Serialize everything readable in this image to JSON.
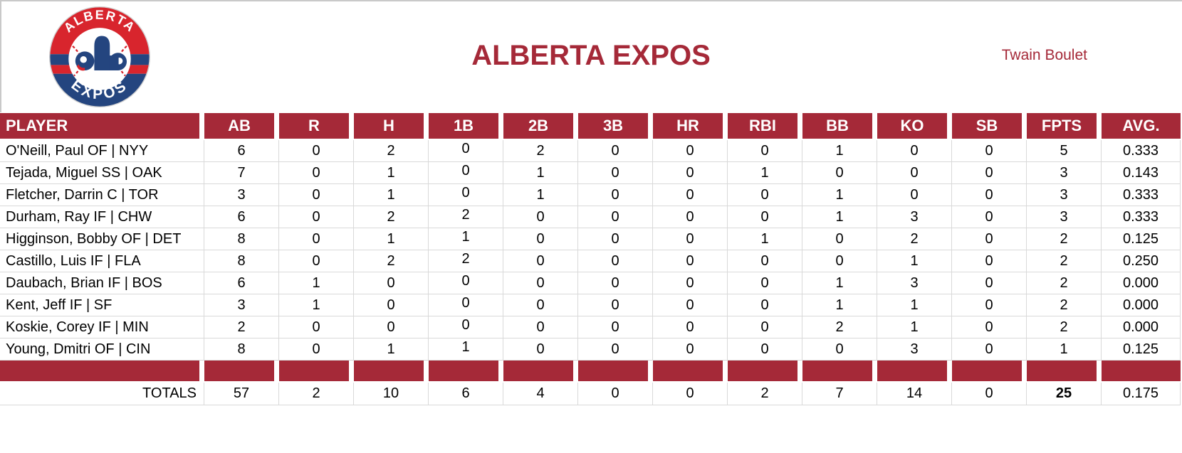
{
  "header": {
    "title": "ALBERTA EXPOS",
    "owner": "Twain Boulet",
    "logo_top": "ALBERTA",
    "logo_bottom": "EXPOS"
  },
  "colors": {
    "accent": "#A52938",
    "gridline": "#D9D9D9",
    "logo_red": "#D8252D",
    "logo_navy": "#24457F"
  },
  "table": {
    "columns": [
      "PLAYER",
      "AB",
      "R",
      "H",
      "1B",
      "2B",
      "3B",
      "HR",
      "RBI",
      "BB",
      "KO",
      "SB",
      "FPTS",
      "AVG."
    ],
    "players": [
      {
        "name": "O'Neill, Paul OF | NYY",
        "stats": [
          "6",
          "0",
          "2",
          "0",
          "2",
          "0",
          "0",
          "0",
          "1",
          "0",
          "0",
          "5",
          "0.333"
        ]
      },
      {
        "name": "Tejada, Miguel SS | OAK",
        "stats": [
          "7",
          "0",
          "1",
          "0",
          "1",
          "0",
          "0",
          "1",
          "0",
          "0",
          "0",
          "3",
          "0.143"
        ]
      },
      {
        "name": "Fletcher, Darrin C | TOR",
        "stats": [
          "3",
          "0",
          "1",
          "0",
          "1",
          "0",
          "0",
          "0",
          "1",
          "0",
          "0",
          "3",
          "0.333"
        ]
      },
      {
        "name": "Durham, Ray IF | CHW",
        "stats": [
          "6",
          "0",
          "2",
          "2",
          "0",
          "0",
          "0",
          "0",
          "1",
          "3",
          "0",
          "3",
          "0.333"
        ]
      },
      {
        "name": "Higginson, Bobby OF | DET",
        "stats": [
          "8",
          "0",
          "1",
          "1",
          "0",
          "0",
          "0",
          "1",
          "0",
          "2",
          "0",
          "2",
          "0.125"
        ]
      },
      {
        "name": "Castillo, Luis IF | FLA",
        "stats": [
          "8",
          "0",
          "2",
          "2",
          "0",
          "0",
          "0",
          "0",
          "0",
          "1",
          "0",
          "2",
          "0.250"
        ]
      },
      {
        "name": "Daubach, Brian IF | BOS",
        "stats": [
          "6",
          "1",
          "0",
          "0",
          "0",
          "0",
          "0",
          "0",
          "1",
          "3",
          "0",
          "2",
          "0.000"
        ]
      },
      {
        "name": "Kent, Jeff IF | SF",
        "stats": [
          "3",
          "1",
          "0",
          "0",
          "0",
          "0",
          "0",
          "0",
          "1",
          "1",
          "0",
          "2",
          "0.000"
        ]
      },
      {
        "name": "Koskie, Corey IF | MIN",
        "stats": [
          "2",
          "0",
          "0",
          "0",
          "0",
          "0",
          "0",
          "0",
          "2",
          "1",
          "0",
          "2",
          "0.000"
        ]
      },
      {
        "name": "Young, Dmitri OF | CIN",
        "stats": [
          "8",
          "0",
          "1",
          "1",
          "0",
          "0",
          "0",
          "0",
          "0",
          "3",
          "0",
          "1",
          "0.125"
        ]
      }
    ],
    "totals_label": "TOTALS",
    "totals": [
      "57",
      "2",
      "10",
      "6",
      "4",
      "0",
      "0",
      "2",
      "7",
      "14",
      "0",
      "25",
      "0.175"
    ],
    "bold_total_index": 11
  }
}
